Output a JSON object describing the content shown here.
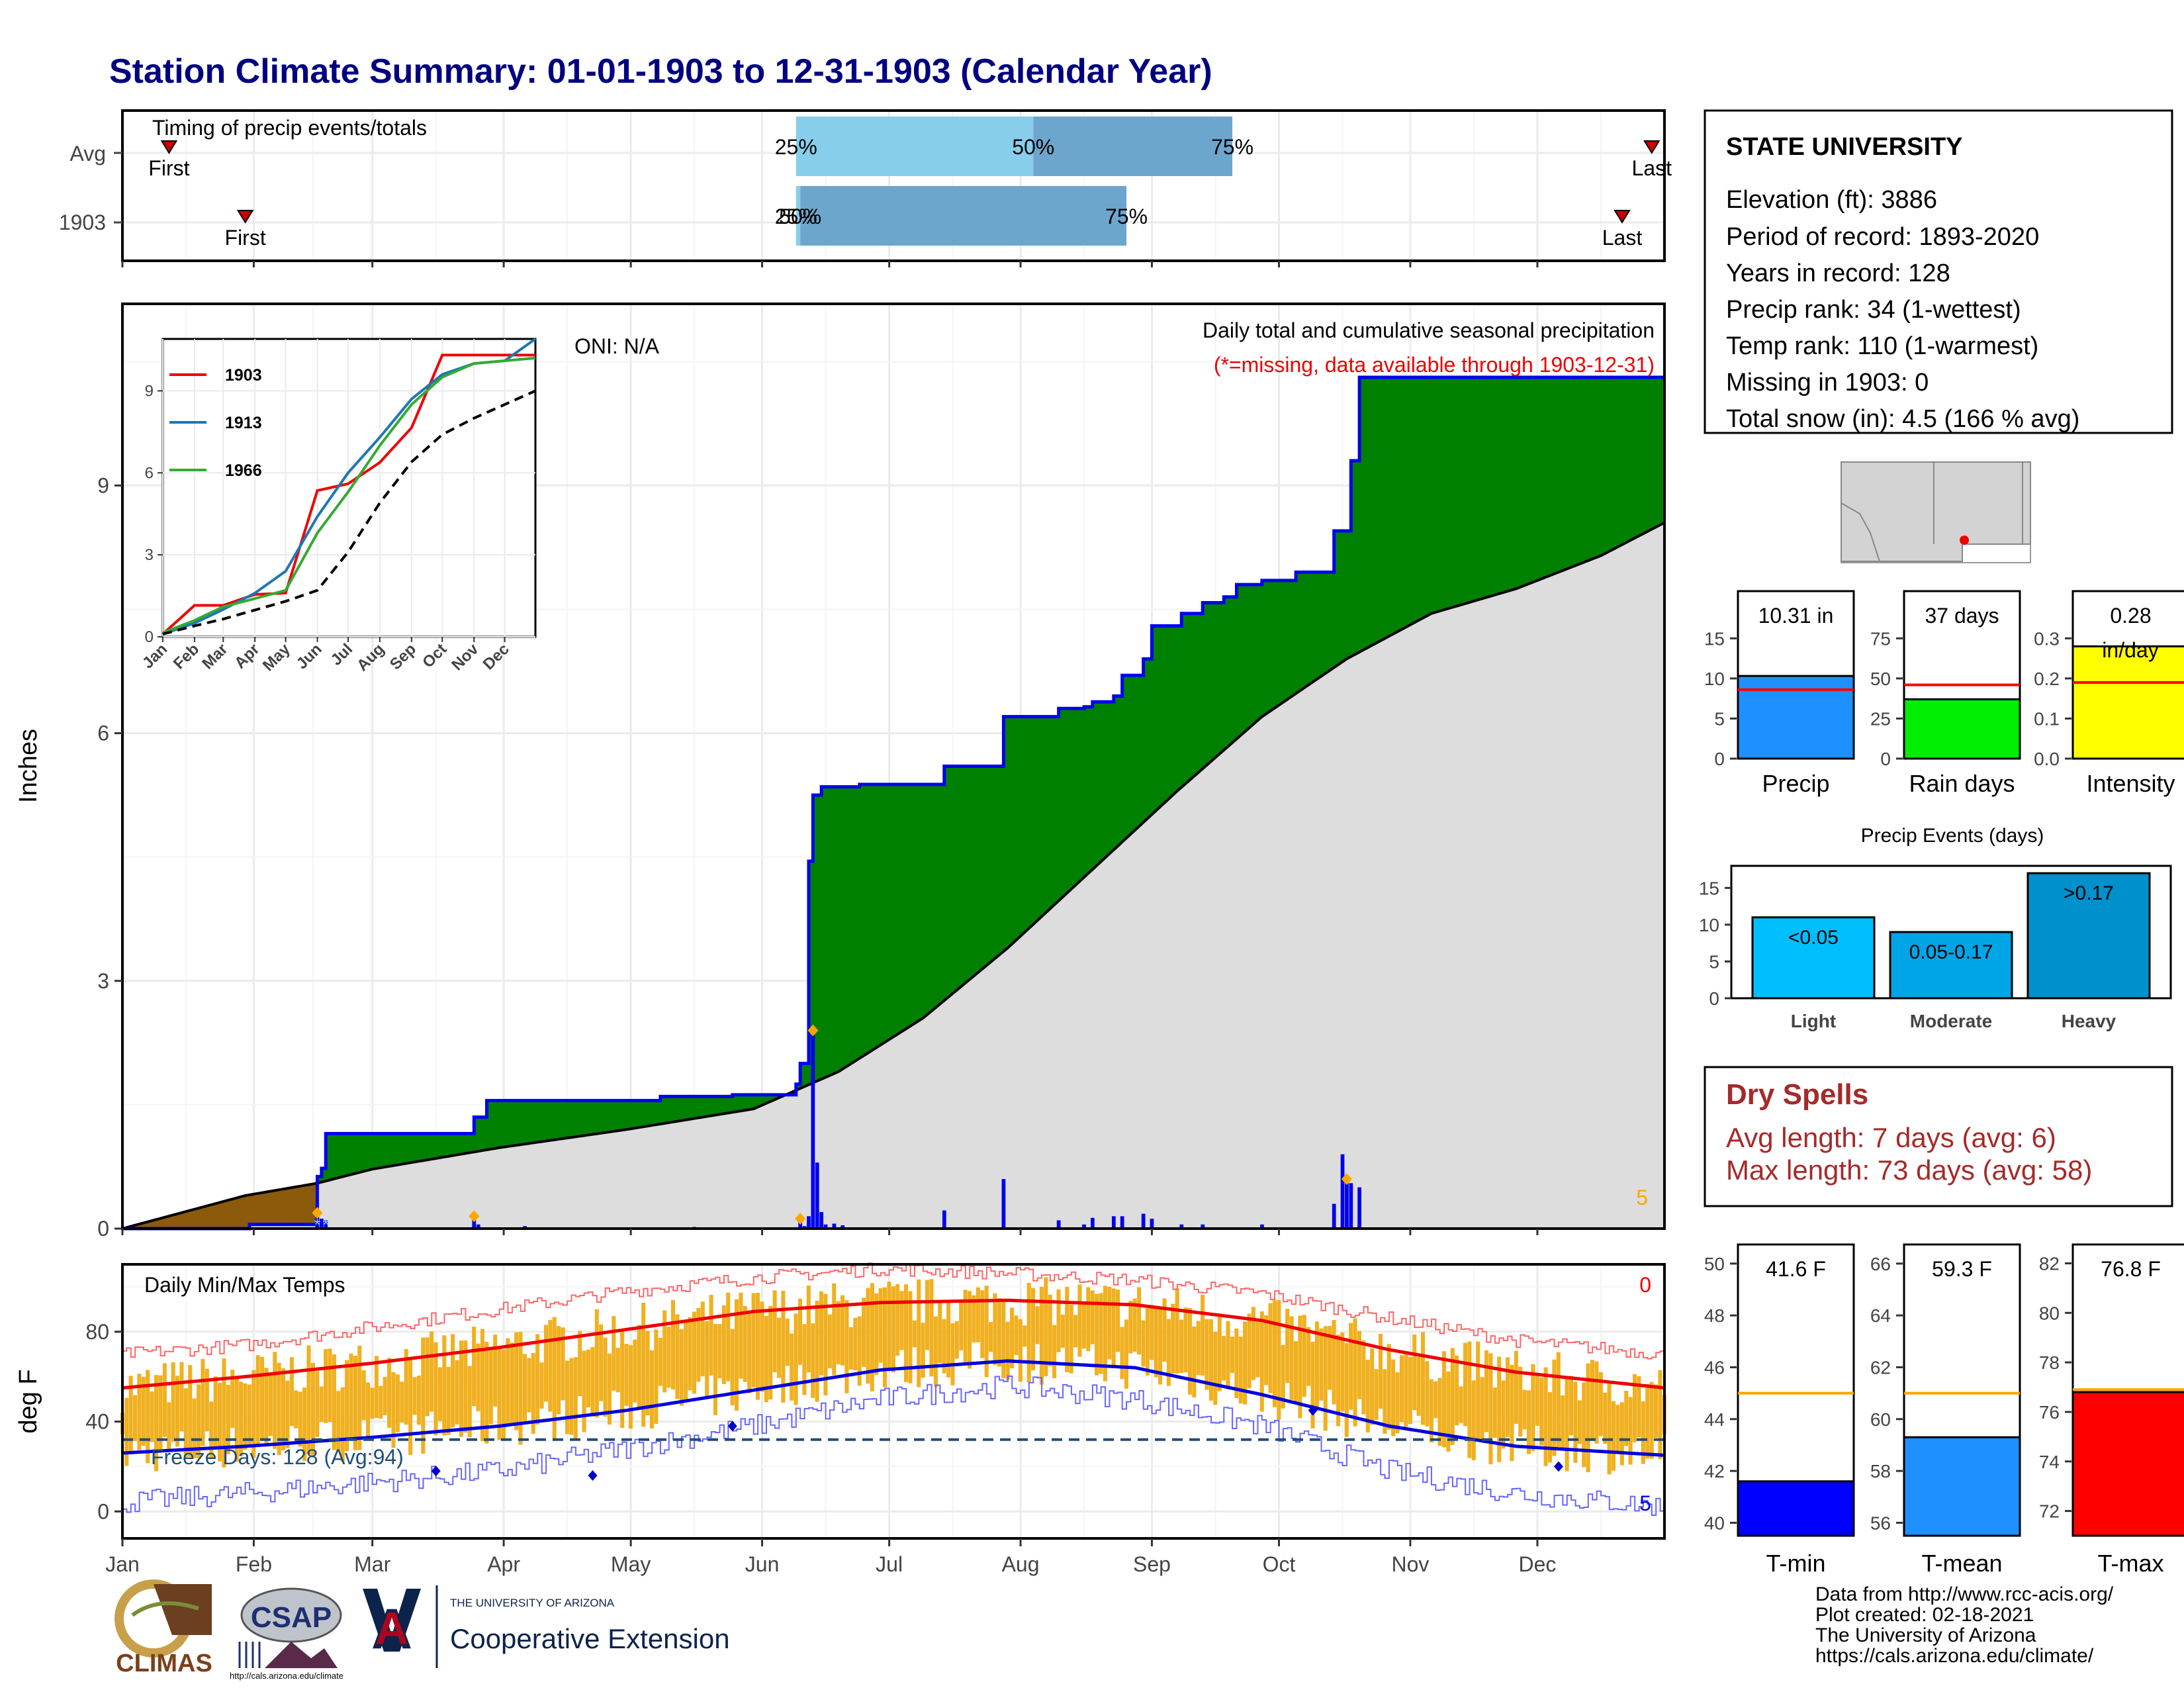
{
  "title": "Station Climate Summary: 01-01-1903 to 12-31-1903 (Calendar Year)",
  "months": [
    "Jan",
    "Feb",
    "Mar",
    "Apr",
    "May",
    "Jun",
    "Jul",
    "Aug",
    "Sep",
    "Oct",
    "Nov",
    "Dec"
  ],
  "timing": {
    "title": "Timing of precip events/totals",
    "rows": [
      {
        "label": "Avg",
        "first_day": 12,
        "last_day": 362,
        "p25_day": 160,
        "p50_day": 216,
        "p75_day": 263,
        "first_label": "First",
        "last_label": "Last",
        "p25_label": "25%",
        "p50_label": "50%",
        "p75_label": "75%"
      },
      {
        "label": "1903",
        "first_day": 30,
        "last_day": 355,
        "p25_day": 160,
        "p50_day": 161,
        "p75_day": 238,
        "first_label": "First",
        "last_label": "Last",
        "p25_label": "25%",
        "p50_label": "50%",
        "p75_label": "75%"
      }
    ],
    "colors": {
      "early": "#87ceeb",
      "late": "#6ca6cd",
      "marker": "#cc0000"
    }
  },
  "precip_panel": {
    "ylabel": "Inches",
    "yticks": [
      0,
      3,
      6,
      9
    ],
    "ylim": [
      0,
      11.2
    ],
    "oni": "ONI: N/A",
    "legend_title": "Daily total and cumulative seasonal precipitation",
    "missing_note": "(*=missing, data available through 1903-12-31)",
    "snow_count": "5",
    "colors": {
      "above": "#008000",
      "below": "#8b5a0b",
      "normal": "#dddddd",
      "line": "#0000ee",
      "bars": "#0000ee",
      "snow": "#ffa500"
    }
  },
  "chart_data": [
    {
      "type": "area",
      "title": "Daily total and cumulative seasonal precipitation",
      "xlabel": "",
      "ylabel": "Inches",
      "ylim": [
        0,
        11.2
      ],
      "cumulative_1903": [
        [
          1,
          0
        ],
        [
          30,
          0
        ],
        [
          31,
          0.05
        ],
        [
          47,
          0.2
        ],
        [
          47,
          0.63
        ],
        [
          48,
          0.73
        ],
        [
          49,
          1.15
        ],
        [
          84,
          1.15
        ],
        [
          84,
          1.35
        ],
        [
          87,
          1.55
        ],
        [
          128,
          1.55
        ],
        [
          128,
          1.6
        ],
        [
          145,
          1.62
        ],
        [
          160,
          1.75
        ],
        [
          161,
          2.0
        ],
        [
          163,
          2.0
        ],
        [
          163,
          4.45
        ],
        [
          164,
          5.25
        ],
        [
          166,
          5.35
        ],
        [
          175,
          5.38
        ],
        [
          195,
          5.38
        ],
        [
          195,
          5.6
        ],
        [
          209,
          5.6
        ],
        [
          209,
          6.2
        ],
        [
          222,
          6.3
        ],
        [
          228,
          6.32
        ],
        [
          230,
          6.38
        ],
        [
          235,
          6.45
        ],
        [
          237,
          6.7
        ],
        [
          242,
          6.9
        ],
        [
          244,
          7.3
        ],
        [
          251,
          7.45
        ],
        [
          256,
          7.58
        ],
        [
          261,
          7.65
        ],
        [
          264,
          7.8
        ],
        [
          270,
          7.85
        ],
        [
          277,
          7.85
        ],
        [
          278,
          7.95
        ],
        [
          286,
          7.95
        ],
        [
          287,
          8.45
        ],
        [
          290,
          8.45
        ],
        [
          291,
          9.3
        ],
        [
          293,
          10.31
        ],
        [
          365,
          10.31
        ]
      ],
      "cumulative_avg": [
        [
          1,
          0
        ],
        [
          30,
          0.4
        ],
        [
          47,
          0.55
        ],
        [
          60,
          0.72
        ],
        [
          90,
          0.98
        ],
        [
          120,
          1.2
        ],
        [
          150,
          1.45
        ],
        [
          170,
          1.9
        ],
        [
          190,
          2.55
        ],
        [
          210,
          3.4
        ],
        [
          230,
          4.35
        ],
        [
          250,
          5.3
        ],
        [
          270,
          6.2
        ],
        [
          290,
          6.9
        ],
        [
          310,
          7.45
        ],
        [
          330,
          7.75
        ],
        [
          350,
          8.15
        ],
        [
          365,
          8.55
        ]
      ],
      "daily_1903": [
        [
          47,
          0.19
        ],
        [
          48,
          0.12
        ],
        [
          49,
          0.1
        ],
        [
          84,
          0.15
        ],
        [
          85,
          0.05
        ],
        [
          96,
          0.03
        ],
        [
          131,
          0.01
        ],
        [
          136,
          0.02
        ],
        [
          143,
          0.01
        ],
        [
          152,
          0.01
        ],
        [
          161,
          0.12
        ],
        [
          162,
          0.03
        ],
        [
          163,
          0.15
        ],
        [
          164,
          2.4
        ],
        [
          165,
          0.8
        ],
        [
          166,
          0.2
        ],
        [
          167,
          0.05
        ],
        [
          169,
          0.06
        ],
        [
          171,
          0.04
        ],
        [
          195,
          0.22
        ],
        [
          209,
          0.6
        ],
        [
          222,
          0.1
        ],
        [
          228,
          0.05
        ],
        [
          230,
          0.13
        ],
        [
          235,
          0.15
        ],
        [
          237,
          0.15
        ],
        [
          242,
          0.18
        ],
        [
          244,
          0.12
        ],
        [
          251,
          0.05
        ],
        [
          256,
          0.05
        ],
        [
          270,
          0.05
        ],
        [
          287,
          0.3
        ],
        [
          289,
          0.9
        ],
        [
          290,
          0.6
        ],
        [
          291,
          0.55
        ],
        [
          293,
          0.5
        ]
      ],
      "snow_markers": [
        47,
        84,
        161,
        164,
        290
      ]
    },
    {
      "type": "line",
      "title": "",
      "xlabel": "",
      "ylabel": "",
      "x": [
        1,
        32,
        60,
        91,
        121,
        152,
        182,
        213,
        244,
        274,
        305,
        335,
        365
      ],
      "series": [
        {
          "name": "1903",
          "values": [
            0.1,
            1.15,
            1.15,
            1.55,
            1.6,
            5.35,
            5.6,
            6.38,
            7.65,
            10.31,
            10.31,
            10.31,
            10.31
          ]
        },
        {
          "name": "1913",
          "values": [
            0.1,
            0.5,
            1.0,
            1.6,
            2.4,
            4.4,
            6.0,
            7.3,
            8.7,
            9.6,
            10.0,
            10.1,
            10.9
          ]
        },
        {
          "name": "1966",
          "values": [
            0.15,
            0.6,
            1.1,
            1.4,
            1.7,
            3.8,
            5.3,
            7.0,
            8.5,
            9.5,
            10.0,
            10.1,
            10.2
          ]
        },
        {
          "values": [
            0.1,
            0.4,
            0.65,
            0.98,
            1.3,
            1.7,
            3.1,
            4.9,
            6.4,
            7.4,
            8.0,
            8.5,
            9.0
          ]
        }
      ],
      "yticks": [
        0,
        3,
        6,
        9
      ],
      "ylim": [
        0,
        10.9
      ],
      "xticklabels": [
        "Jan",
        "Feb",
        "Mar",
        "Apr",
        "May",
        "Jun",
        "Jul",
        "Aug",
        "Sep",
        "Oct",
        "Nov",
        "Dec"
      ]
    },
    {
      "type": "bar",
      "title": "Daily Min/Max Temps",
      "xlabel": "",
      "ylabel": "deg F",
      "ylim": [
        -12,
        110
      ],
      "yticks": [
        0,
        40,
        80
      ],
      "avg_max": [
        [
          1,
          55
        ],
        [
          30,
          60
        ],
        [
          60,
          66
        ],
        [
          90,
          73
        ],
        [
          120,
          81
        ],
        [
          150,
          89
        ],
        [
          180,
          93
        ],
        [
          210,
          94
        ],
        [
          240,
          92
        ],
        [
          270,
          85
        ],
        [
          300,
          72
        ],
        [
          330,
          62
        ],
        [
          365,
          55
        ]
      ],
      "avg_min": [
        [
          1,
          26
        ],
        [
          30,
          29
        ],
        [
          60,
          33
        ],
        [
          90,
          38
        ],
        [
          120,
          45
        ],
        [
          150,
          54
        ],
        [
          180,
          63
        ],
        [
          210,
          67
        ],
        [
          240,
          64
        ],
        [
          270,
          52
        ],
        [
          300,
          38
        ],
        [
          330,
          29
        ],
        [
          365,
          25
        ]
      ],
      "record_max": [
        [
          1,
          70
        ],
        [
          30,
          74
        ],
        [
          60,
          82
        ],
        [
          90,
          90
        ],
        [
          120,
          98
        ],
        [
          150,
          104
        ],
        [
          180,
          108
        ],
        [
          210,
          106
        ],
        [
          240,
          103
        ],
        [
          270,
          97
        ],
        [
          300,
          86
        ],
        [
          330,
          76
        ],
        [
          365,
          70
        ]
      ],
      "record_min": [
        [
          1,
          4
        ],
        [
          30,
          8
        ],
        [
          60,
          13
        ],
        [
          90,
          18
        ],
        [
          120,
          28
        ],
        [
          150,
          38
        ],
        [
          180,
          50
        ],
        [
          210,
          56
        ],
        [
          240,
          50
        ],
        [
          270,
          38
        ],
        [
          300,
          18
        ],
        [
          330,
          8
        ],
        [
          365,
          2
        ]
      ],
      "freeze_line": 32,
      "freeze_label": "Freeze Days: 128 (Avg:94)",
      "count_top": "0",
      "count_bottom": "5",
      "colors": {
        "bars": "#f0b020",
        "avg_max": "#ee0000",
        "avg_min": "#0000dd",
        "record_max": "#ff6666",
        "record_min": "#6666ff",
        "freeze": "#1f4e79"
      }
    },
    {
      "type": "bar",
      "title": "",
      "categories": [
        "Precip",
        "Rain days",
        "Intensity"
      ],
      "values": [
        10.31,
        37,
        0.28
      ],
      "averages": [
        8.6,
        46,
        0.19
      ],
      "value_labels": [
        "10.31 in",
        "37 days",
        "0.28"
      ],
      "intensity_unit": "in/day",
      "panels": [
        {
          "yticks": [
            0,
            5,
            10,
            15
          ],
          "ylim": [
            0,
            18
          ],
          "color": "#1e90ff"
        },
        {
          "yticks": [
            0,
            25,
            50,
            75
          ],
          "ylim": [
            0,
            90
          ],
          "color": "#00ee00"
        },
        {
          "yticks": [
            0.0,
            0.1,
            0.2,
            0.3
          ],
          "ylim": [
            0,
            0.36
          ],
          "color": "#ffff00"
        }
      ]
    },
    {
      "type": "bar",
      "title": "Precip Events (days)",
      "categories": [
        "Light",
        "Moderate",
        "Heavy"
      ],
      "values": [
        11,
        9,
        17
      ],
      "bar_labels": [
        "<0.05",
        "0.05-0.17",
        ">0.17"
      ],
      "yticks": [
        0,
        5,
        10,
        15
      ],
      "ylim": [
        0,
        18
      ],
      "colors": [
        "#00bfff",
        "#00a5e6",
        "#0090cc"
      ]
    },
    {
      "type": "bar",
      "title": "",
      "categories": [
        "T-min",
        "T-mean",
        "T-max"
      ],
      "values": [
        41.6,
        59.3,
        76.8
      ],
      "averages": [
        45.0,
        61.0,
        76.9
      ],
      "value_labels": [
        "41.6 F",
        "59.3 F",
        "76.8 F"
      ],
      "panels": [
        {
          "yticks": [
            40,
            42,
            44,
            46,
            48,
            50
          ],
          "ylim": [
            39.5,
            50.2
          ],
          "color": "#0000ff"
        },
        {
          "yticks": [
            56,
            58,
            60,
            62,
            64,
            66
          ],
          "ylim": [
            55.5,
            66.2
          ],
          "color": "#1e90ff"
        },
        {
          "yticks": [
            72,
            74,
            76,
            78,
            80,
            82
          ],
          "ylim": [
            71,
            82.2
          ],
          "color": "#ff0000"
        }
      ]
    }
  ],
  "station": {
    "name": "STATE UNIVERSITY",
    "lines": [
      "Elevation (ft): 3886",
      "Period of record: 1893-2020",
      "Years in record: 128",
      "Precip rank: 34 (1-wettest)",
      "Temp rank: 110 (1-warmest)",
      "Missing in 1903: 0",
      "Total snow (in): 4.5 (166 % avg)"
    ]
  },
  "dry_spells": {
    "title": "Dry Spells",
    "avg": "Avg length: 7 days (avg: 6)",
    "max": "Max length: 73 days (avg: 58)",
    "color": "#a52a2a"
  },
  "footer": {
    "lines": [
      "Data from http://www.rcc-acis.org/",
      "Plot created: 02-18-2021",
      "The University of Arizona",
      "https://cals.arizona.edu/climate/"
    ],
    "logo_climas": "CLIMAS",
    "logo_csap": "CSAP",
    "logo_csap_url": "http://cals.arizona.edu/climate",
    "ua_small": "THE UNIVERSITY OF ARIZONA",
    "ua_big": "Cooperative Extension"
  },
  "colors": {
    "title": "#000080"
  }
}
